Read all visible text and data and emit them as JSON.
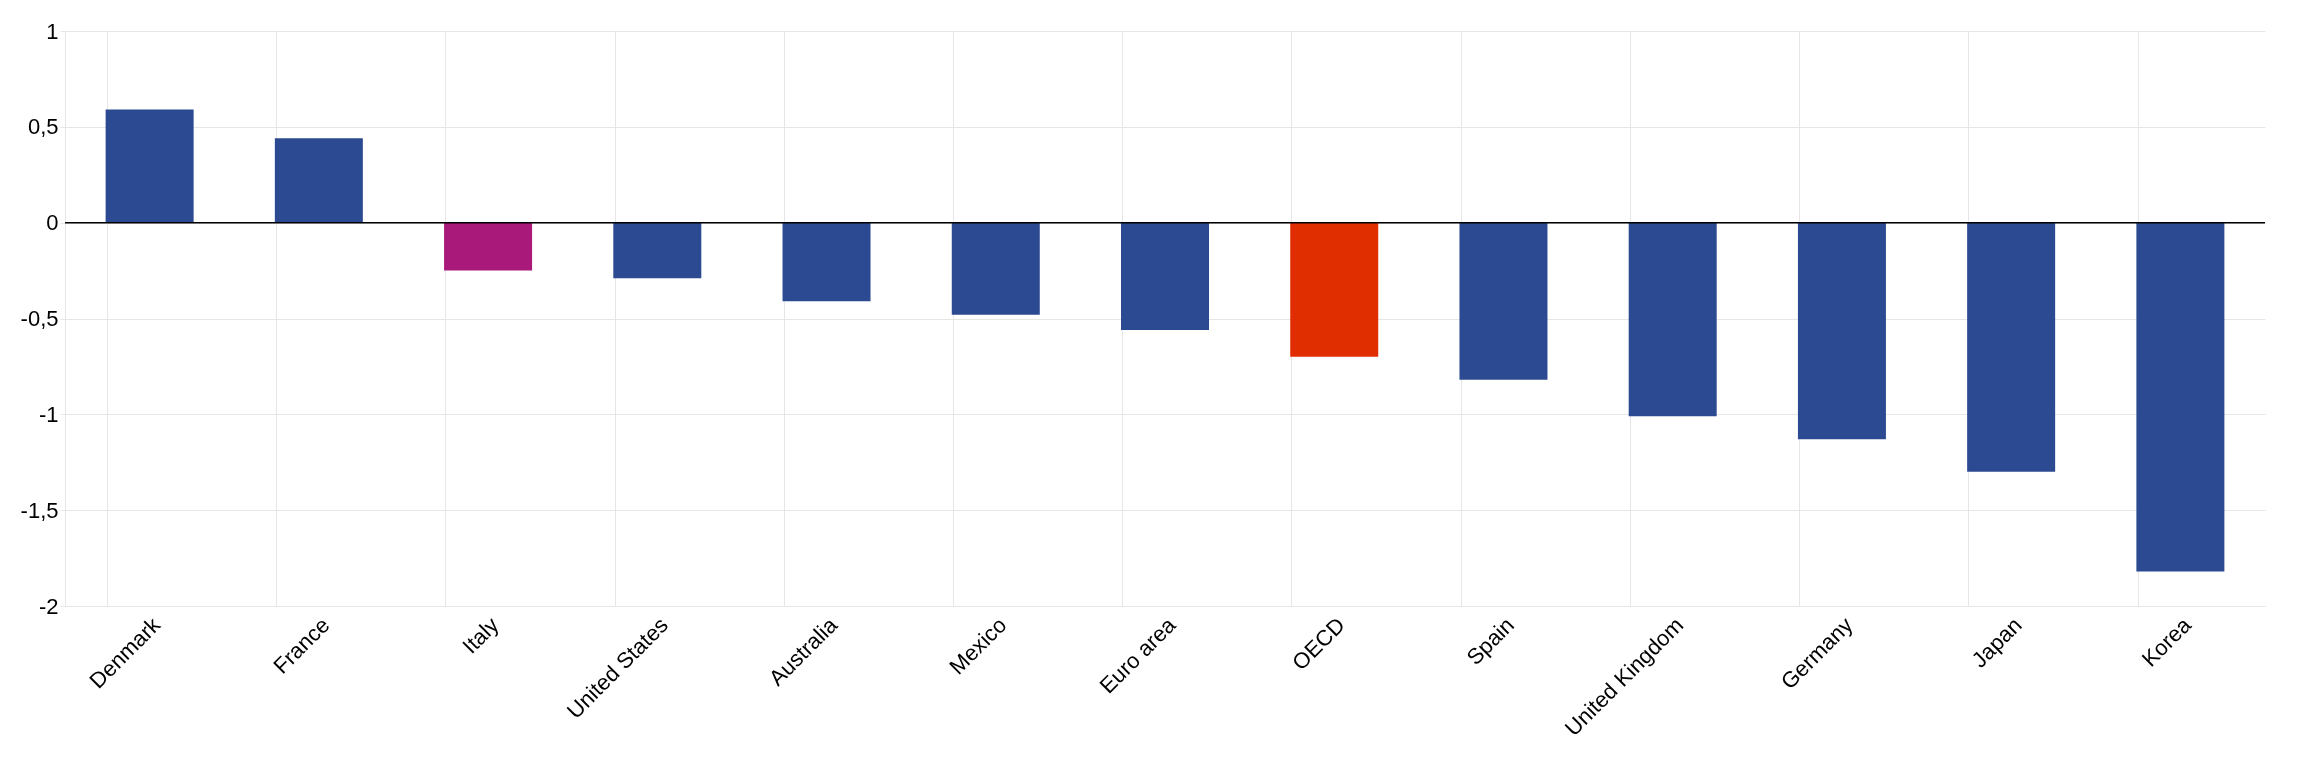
{
  "chart_data": {
    "type": "bar",
    "categories": [
      "Denmark",
      "France",
      "Italy",
      "United States",
      "Australia",
      "Mexico",
      "Euro area",
      "OECD",
      "Spain",
      "United Kingdom",
      "Germany",
      "Japan",
      "Korea"
    ],
    "values": [
      0.59,
      0.44,
      -0.25,
      -0.29,
      -0.41,
      -0.48,
      -0.56,
      -0.7,
      -0.82,
      -1.01,
      -1.13,
      -1.3,
      -1.82
    ],
    "colors": [
      "#2b4a91",
      "#2b4a91",
      "#a8197a",
      "#2b4a91",
      "#2b4a91",
      "#2b4a91",
      "#2b4a91",
      "#e02e00",
      "#2b4a91",
      "#2b4a91",
      "#2b4a91",
      "#2b4a91",
      "#2b4a91"
    ],
    "ylim": [
      -2,
      1
    ],
    "yticks": [
      {
        "value": -2,
        "label": "-2"
      },
      {
        "value": -1.5,
        "label": "-1,5"
      },
      {
        "value": -1,
        "label": "-1"
      },
      {
        "value": -0.5,
        "label": "-0,5"
      },
      {
        "value": 0,
        "label": "0"
      },
      {
        "value": 0.5,
        "label": "0,5"
      },
      {
        "value": 1,
        "label": "1"
      }
    ],
    "ref_lines": [
      {
        "axis": "y",
        "value": 0,
        "color": "#000000"
      }
    ],
    "grid": true,
    "legend": false
  }
}
